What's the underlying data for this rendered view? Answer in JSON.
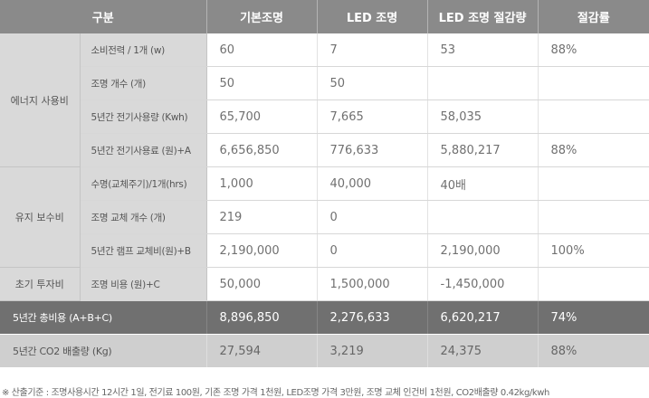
{
  "header": {
    "col1": "구분",
    "col2": "기본조명",
    "col3": "LED 조명",
    "col4": "LED 조명 절감량",
    "col5": "절감률"
  },
  "groups": {
    "energy": "에너지 사용비",
    "maintenance": "유지 보수비",
    "initial": "초기 투자비"
  },
  "rows": [
    {
      "label": "소비전력 / 1개 (w)",
      "basic": "60",
      "led": "7",
      "saving": "53",
      "rate": "88%"
    },
    {
      "label": "조명 개수 (개)",
      "basic": "50",
      "led": "50",
      "saving": "",
      "rate": ""
    },
    {
      "label": "5년간 전기사용량 (Kwh)",
      "basic": "65,700",
      "led": "7,665",
      "saving": "58,035",
      "rate": ""
    },
    {
      "label": "5년간 전기사용료 (원)+A",
      "basic": "6,656,850",
      "led": "776,633",
      "saving": "5,880,217",
      "rate": "88%"
    },
    {
      "label": "수명(교체주기)/1개(hrs)",
      "basic": "1,000",
      "led": "40,000",
      "saving": "40배",
      "rate": ""
    },
    {
      "label": "조명 교체 개수 (개)",
      "basic": "219",
      "led": "0",
      "saving": "",
      "rate": ""
    },
    {
      "label": "5년간 램프 교체비(원)+B",
      "basic": "2,190,000",
      "led": "0",
      "saving": "2,190,000",
      "rate": "100%"
    },
    {
      "label": "조명 비용 (원)+C",
      "basic": "50,000",
      "led": "1,500,000",
      "saving": "-1,450,000",
      "rate": ""
    }
  ],
  "total": {
    "label": "5년간 총비용 (A+B+C)",
    "basic": "8,896,850",
    "led": "2,276,633",
    "saving": "6,620,217",
    "rate": "74%"
  },
  "co2": {
    "label": "5년간 CO2 배출량 (Kg)",
    "basic": "27,594",
    "led": "3,219",
    "saving": "24,375",
    "rate": "88%"
  },
  "footnote": "※ 산출기준 : 조명사용시간 12시간 1일, 전기료 100원, 기존 조명 가격 1천원, LED조명 가격 3만원, 조명 교체 인건비 1천원, CO2배출량 0.42kg/kwh"
}
